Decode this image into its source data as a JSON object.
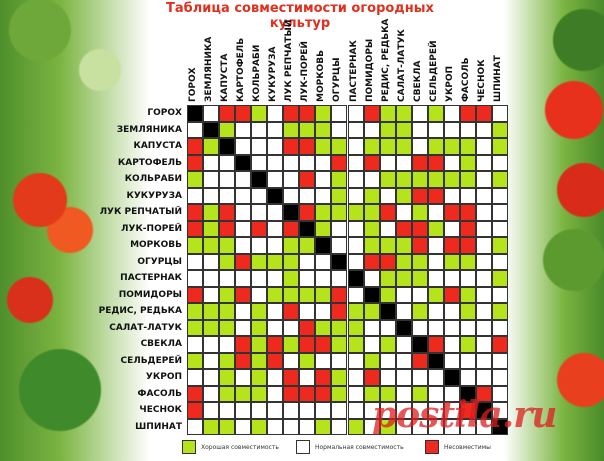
{
  "chart_data": {
    "type": "heatmap",
    "title": "Таблица совместимости огородных культур",
    "crops": [
      "ГОРОХ",
      "ЗЕМЛЯНИКА",
      "КАПУСТА",
      "КАРТОФЕЛЬ",
      "КОЛЬРАБИ",
      "КУКУРУЗА",
      "ЛУК РЕПЧАТЫЙ",
      "ЛУК-ПОРЕЙ",
      "МОРКОВЬ",
      "ОГУРЦЫ",
      "ПАСТЕРНАК",
      "ПОМИДОРЫ",
      "РЕДИС, РЕДЬКА",
      "САЛАТ-ЛАТУК",
      "СВЕКЛА",
      "СЕЛЬДЕРЕЙ",
      "УКРОП",
      "ФАСОЛЬ",
      "ЧЕСНОК",
      "ШПИНАТ"
    ],
    "matrix_codes": {
      "G": "good",
      "N": "normal",
      "B": "incompatible",
      "X": "same crop"
    },
    "matrix": [
      "XNBBGNBBGNNBGGNGNBBN",
      "NXGNNNGGGNNNGGNNNNNG",
      "BGXNNNBBGGNGGGNGGGNG",
      "BNNXNNNNNBNBNNBBNGNN",
      "GNNNXNNBNGNNGGGGGGNG",
      "NNNNNXNNNGNGNGBBNNNN",
      "BGBNNNXBGGGGBNGNBBNN",
      "BGBNBNBXGNNGNBBGNBNN",
      "GGGNNNGGXNNGGGBNBBNG",
      "NNGBGGGNNXNBBGGNGGNN",
      "NNNNNNGNNNXNGGGNNNNG",
      "BNGBNGGGGBNXGNNGBGNN",
      "GGGNGNBNNBGGXNGNNGNG",
      "GGGNGNNBGGGNNXNNNNNN",
      "NNNBGBGBBGGNGNXBNGNB",
      "GNGBGBNGNNNGNNBXNNNN",
      "NNGNGNBNBGNBNNNNXNNN",
      "BNGGGNBBBGNGGNGNNXBN",
      "BNNNNNNNNNNNNNNNNBXN",
      "NGGNGNNNGNGNGNNNNNNX"
    ],
    "legend": [
      {
        "code": "G",
        "label": "Хорошая совместимость",
        "color": "#b5e31c"
      },
      {
        "code": "N",
        "label": "Нормальная совместимость",
        "color": "#ffffff"
      },
      {
        "code": "B",
        "label": "Несовместимы",
        "color": "#ee2a1e"
      }
    ],
    "diagonal_color": "#000000",
    "legend_placement": "bottom"
  },
  "watermark": "postila.ru"
}
